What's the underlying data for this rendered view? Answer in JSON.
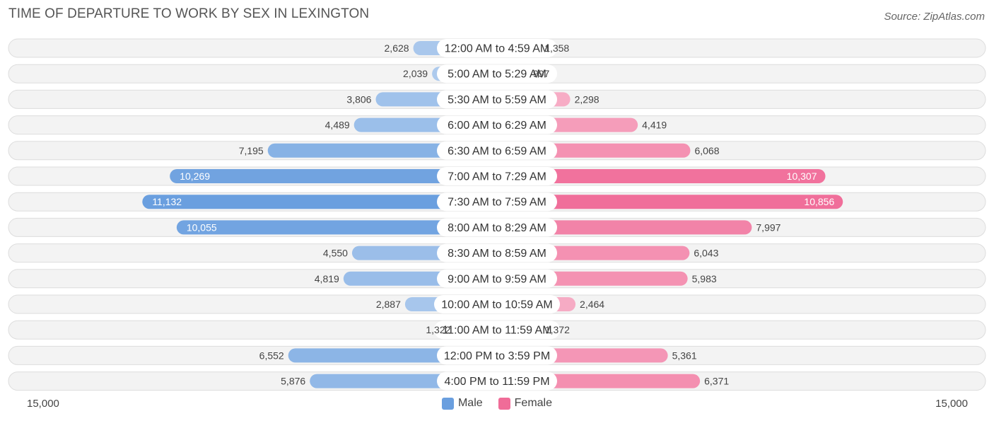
{
  "title": "TIME OF DEPARTURE TO WORK BY SEX IN LEXINGTON",
  "source": "Source: ZipAtlas.com",
  "axis": {
    "left_label": "15,000",
    "right_label": "15,000"
  },
  "legend": [
    {
      "name": "Male",
      "color": "#6a9fdf"
    },
    {
      "name": "Female",
      "color": "#f06c98"
    }
  ],
  "chart_data": {
    "type": "bar",
    "orientation": "horizontal-diverging",
    "title": "TIME OF DEPARTURE TO WORK BY SEX IN LEXINGTON",
    "xlim": [
      -15000,
      15000
    ],
    "categories": [
      "12:00 AM to 4:59 AM",
      "5:00 AM to 5:29 AM",
      "5:30 AM to 5:59 AM",
      "6:00 AM to 6:29 AM",
      "6:30 AM to 6:59 AM",
      "7:00 AM to 7:29 AM",
      "7:30 AM to 7:59 AM",
      "8:00 AM to 8:29 AM",
      "8:30 AM to 8:59 AM",
      "9:00 AM to 9:59 AM",
      "10:00 AM to 10:59 AM",
      "11:00 AM to 11:59 AM",
      "12:00 PM to 3:59 PM",
      "4:00 PM to 11:59 PM"
    ],
    "series": [
      {
        "name": "Male",
        "color": "#6a9fdf",
        "values": [
          2628,
          2039,
          3806,
          4489,
          7195,
          10269,
          11132,
          10055,
          4550,
          4819,
          2887,
          1322,
          6552,
          5876
        ],
        "labels": [
          "2,628",
          "2,039",
          "3,806",
          "4,489",
          "7,195",
          "10,269",
          "11,132",
          "10,055",
          "4,550",
          "4,819",
          "2,887",
          "1,322",
          "6,552",
          "5,876"
        ]
      },
      {
        "name": "Female",
        "color": "#f06c98",
        "values": [
          1358,
          997,
          2298,
          4419,
          6068,
          10307,
          10856,
          7997,
          6043,
          5983,
          2464,
          1372,
          5361,
          6371
        ],
        "labels": [
          "1,358",
          "997",
          "2,298",
          "4,419",
          "6,068",
          "10,307",
          "10,856",
          "7,997",
          "6,043",
          "5,983",
          "2,464",
          "1,372",
          "5,361",
          "6,371"
        ]
      }
    ],
    "legend_position": "bottom-center",
    "grid": false
  }
}
